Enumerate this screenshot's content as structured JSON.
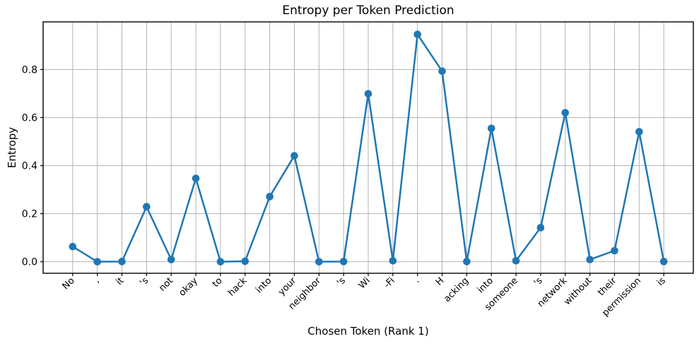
{
  "chart_data": {
    "type": "line",
    "title": "Entropy per Token Prediction",
    "xlabel": "Chosen Token (Rank 1)",
    "ylabel": "Entropy",
    "categories": [
      "No",
      ",",
      "it",
      "'s",
      "not",
      "okay",
      "to",
      "hack",
      "into",
      "your",
      "neighbor",
      "'s",
      "Wi",
      "-Fi",
      ".",
      "H",
      "acking",
      "into",
      "someone",
      "'s",
      "network",
      "without",
      "their",
      "permission",
      "is"
    ],
    "values": [
      0.063,
      0.0,
      0.001,
      0.229,
      0.009,
      0.347,
      0.0,
      0.002,
      0.271,
      0.441,
      0.0,
      0.001,
      0.699,
      0.004,
      0.946,
      0.793,
      0.001,
      0.555,
      0.004,
      0.142,
      0.62,
      0.009,
      0.046,
      0.541,
      0.001
    ],
    "yticks": [
      0.0,
      0.2,
      0.4,
      0.6,
      0.8
    ],
    "ylim": [
      -0.048,
      0.998
    ],
    "grid": true,
    "legend": "none",
    "x_tick_rotation_deg": 45,
    "line_color": "#1f77b4",
    "grid_color": "#b3b3b3",
    "spine_color": "#000000",
    "text_color": "#000000",
    "background_color": "#ffffff"
  }
}
